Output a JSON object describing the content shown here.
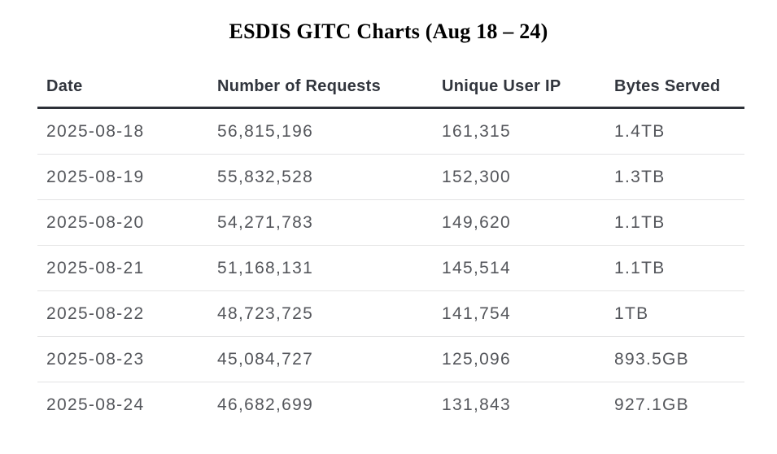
{
  "page": {
    "title": "ESDIS GITC Charts (Aug 18 – 24)"
  },
  "colors": {
    "background": "#ffffff",
    "title_text": "#000000",
    "header_text": "#31353d",
    "header_rule": "#2d3138",
    "body_text": "#54565b",
    "row_divider": "#e3e3e4"
  },
  "chart_data": {
    "type": "table",
    "title": "ESDIS GITC Charts (Aug 18 – 24)",
    "columns": [
      "Date",
      "Number of Requests",
      "Unique User IP",
      "Bytes Served"
    ],
    "rows": [
      [
        "2025-08-18",
        "56,815,196",
        "161,315",
        "1.4TB"
      ],
      [
        "2025-08-19",
        "55,832,528",
        "152,300",
        "1.3TB"
      ],
      [
        "2025-08-20",
        "54,271,783",
        "149,620",
        "1.1TB"
      ],
      [
        "2025-08-21",
        "51,168,131",
        "145,514",
        "1.1TB"
      ],
      [
        "2025-08-22",
        "48,723,725",
        "141,754",
        "1TB"
      ],
      [
        "2025-08-23",
        "45,084,727",
        "125,096",
        "893.5GB"
      ],
      [
        "2025-08-24",
        "46,682,699",
        "131,843",
        "927.1GB"
      ]
    ]
  }
}
